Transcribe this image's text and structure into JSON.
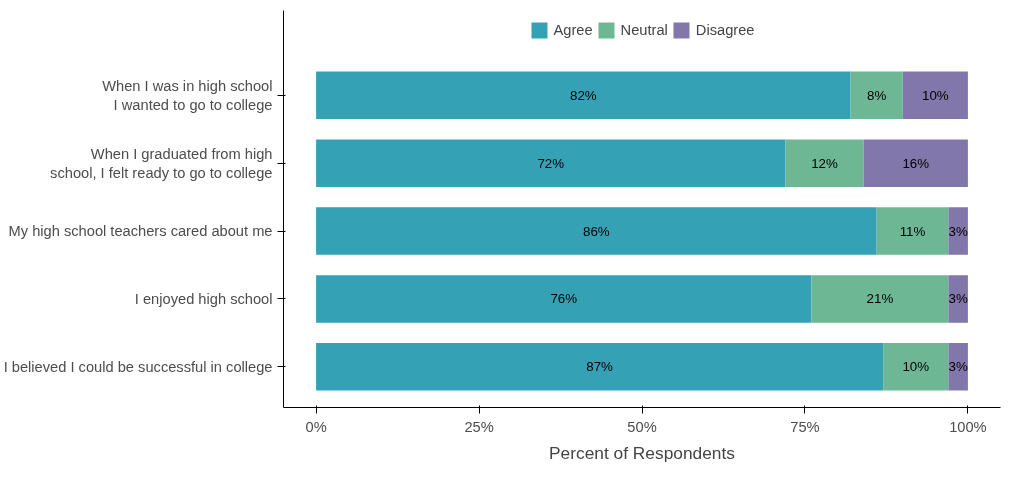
{
  "chart_data": {
    "type": "bar",
    "orientation": "horizontal",
    "stacked": true,
    "categories": [
      "When I was in high school\nI wanted to go to college",
      "When I graduated from high\nschool, I felt ready to go to college",
      "My high school teachers cared about me",
      "I enjoyed high school",
      "I believed I could be successful in college"
    ],
    "series": [
      {
        "name": "Agree",
        "color": "#35a1b4",
        "values": [
          82,
          72,
          86,
          76,
          87
        ],
        "value_labels": [
          "82%",
          "72%",
          "86%",
          "76%",
          "87%"
        ]
      },
      {
        "name": "Neutral",
        "color": "#6db795",
        "values": [
          8,
          12,
          11,
          21,
          10
        ],
        "value_labels": [
          "8%",
          "12%",
          "11%",
          "21%",
          "10%"
        ]
      },
      {
        "name": "Disagree",
        "color": "#8177aa",
        "values": [
          10,
          16,
          3,
          3,
          3
        ],
        "value_labels": [
          "10%",
          "16%",
          "3%",
          "3%",
          "3%"
        ]
      }
    ],
    "xlabel": "Percent of Respondents",
    "xlim": [
      -5,
      105
    ],
    "xticks": [
      {
        "value": 0,
        "label": "0%"
      },
      {
        "value": 25,
        "label": "25%"
      },
      {
        "value": 50,
        "label": "50%"
      },
      {
        "value": 75,
        "label": "75%"
      },
      {
        "value": 100,
        "label": "100%"
      }
    ],
    "grid": false,
    "legend": "top"
  }
}
